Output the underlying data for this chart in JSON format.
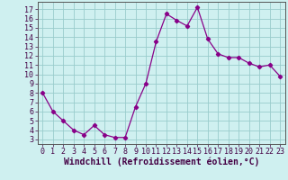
{
  "x": [
    0,
    1,
    2,
    3,
    4,
    5,
    6,
    7,
    8,
    9,
    10,
    11,
    12,
    13,
    14,
    15,
    16,
    17,
    18,
    19,
    20,
    21,
    22,
    23
  ],
  "y": [
    8.0,
    6.0,
    5.0,
    4.0,
    3.5,
    4.5,
    3.5,
    3.2,
    3.2,
    6.5,
    9.0,
    13.5,
    16.5,
    15.8,
    15.2,
    17.2,
    13.8,
    12.2,
    11.8,
    11.8,
    11.2,
    10.8,
    11.0,
    9.8
  ],
  "line_color": "#880088",
  "marker": "D",
  "marker_size": 2.2,
  "bg_color": "#cff0f0",
  "grid_color": "#99cccc",
  "xlabel": "Windchill (Refroidissement éolien,°C)",
  "ylabel_ticks": [
    3,
    4,
    5,
    6,
    7,
    8,
    9,
    10,
    11,
    12,
    13,
    14,
    15,
    16,
    17
  ],
  "xlim": [
    -0.5,
    23.5
  ],
  "ylim": [
    2.5,
    17.8
  ],
  "xlabel_fontsize": 7.0,
  "tick_fontsize": 6.0
}
